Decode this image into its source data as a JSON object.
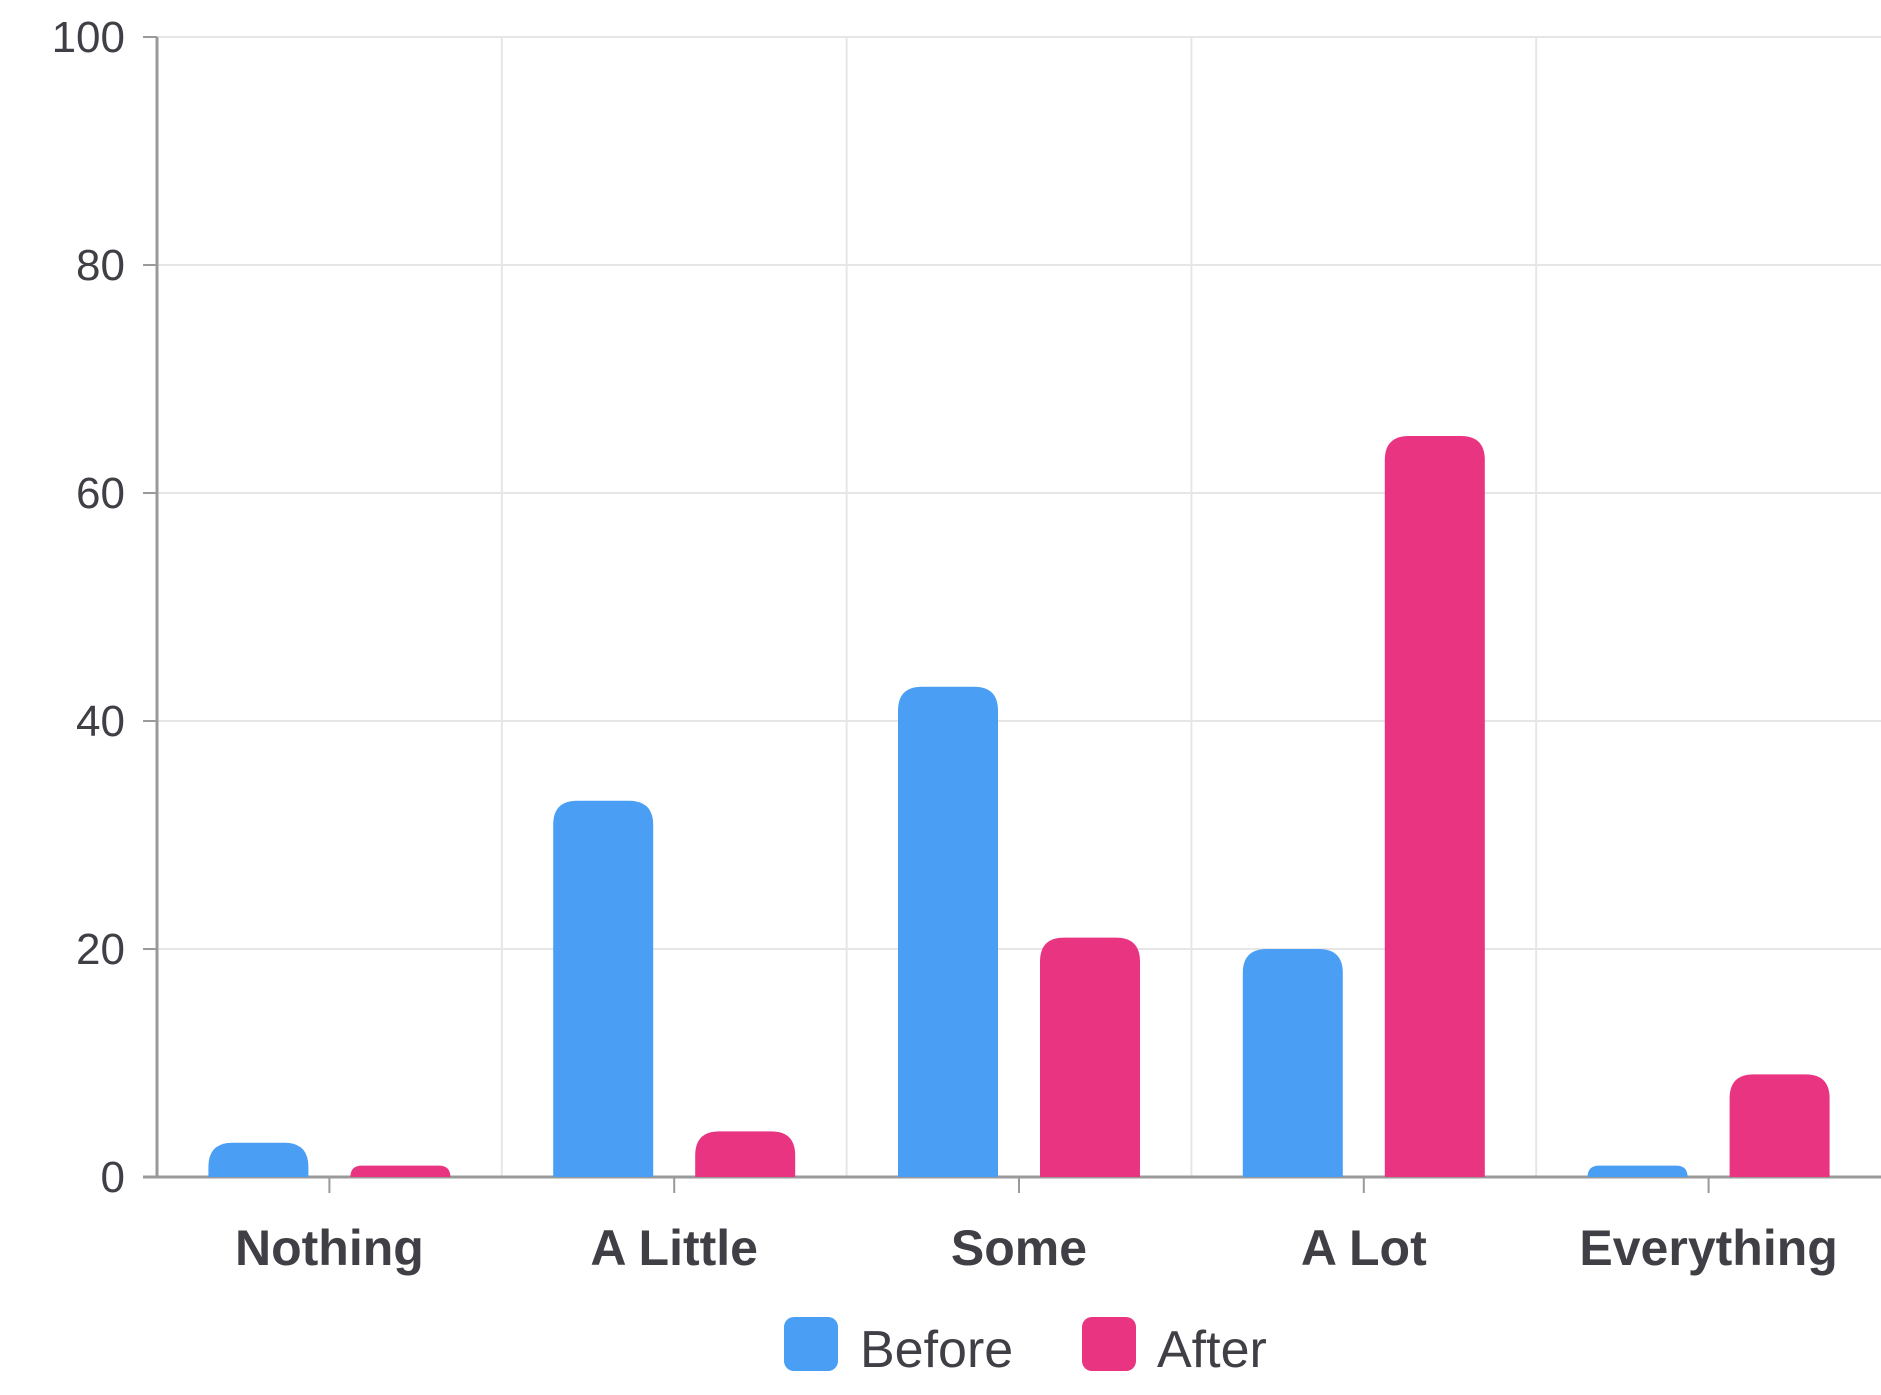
{
  "chart_data": {
    "type": "bar",
    "categories": [
      "Nothing",
      "A Little",
      "Some",
      "A Lot",
      "Everything"
    ],
    "series": [
      {
        "name": "Before",
        "color": "#4a9ff5",
        "values": [
          3,
          33,
          43,
          20,
          1
        ]
      },
      {
        "name": "After",
        "color": "#e93482",
        "values": [
          1,
          4,
          21,
          65,
          9
        ]
      }
    ],
    "ylim": [
      0,
      100
    ],
    "yticks": [
      0,
      20,
      40,
      60,
      80,
      100
    ],
    "grid": true,
    "legend_position": "bottom-center",
    "colors": {
      "axis": "#9a9a9a",
      "grid": "#e6e6e6",
      "text": "#3f3f45"
    }
  }
}
